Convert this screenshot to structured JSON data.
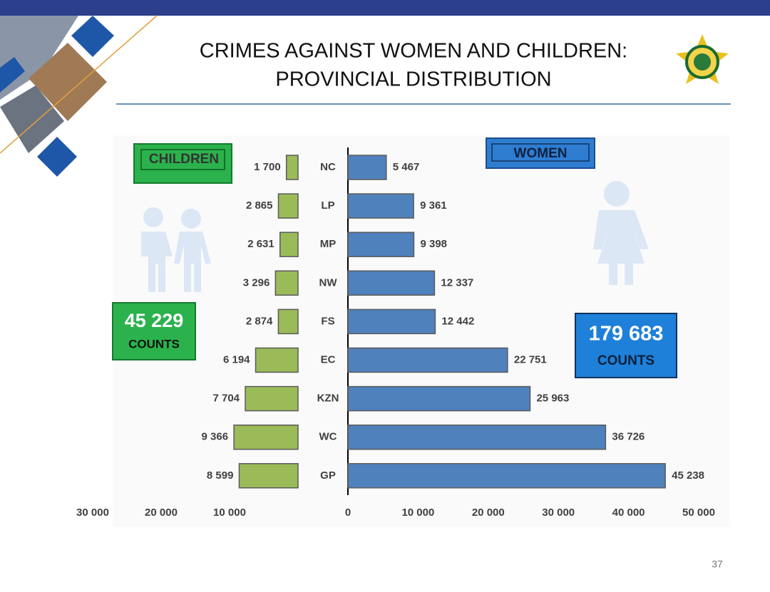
{
  "slide": {
    "title_lines": [
      "CRIMES AGAINST WOMEN AND CHILDREN:",
      "PROVINCIAL DISTRIBUTION"
    ],
    "page_number": "37"
  },
  "chart_data": [
    {
      "type": "bar",
      "orientation": "horizontal",
      "x_reversed": true,
      "label": "CHILDREN",
      "total": "45 229",
      "total_unit": "COUNTS",
      "color": "#9bbb59",
      "values": [
        1700,
        2865,
        2631,
        3296,
        2874,
        6194,
        7704,
        9366,
        8599
      ],
      "value_labels": [
        "1 700",
        "2 865",
        "2 631",
        "3 296",
        "2 874",
        "6 194",
        "7 704",
        "9 366",
        "8 599"
      ],
      "xlim": [
        0,
        30000
      ],
      "xticks": [
        {
          "value": 30000,
          "label": "30 000"
        },
        {
          "value": 20000,
          "label": "20 000"
        },
        {
          "value": 10000,
          "label": "10 000"
        }
      ]
    },
    {
      "type": "bar",
      "orientation": "horizontal",
      "x_reversed": false,
      "label": "WOMEN",
      "total": "179 683",
      "total_unit": "COUNTS",
      "color": "#4f81bd",
      "categories": [
        "NC",
        "LP",
        "MP",
        "NW",
        "FS",
        "EC",
        "KZN",
        "WC",
        "GP"
      ],
      "values": [
        5467,
        9361,
        9398,
        12337,
        12442,
        22751,
        25963,
        36726,
        45238
      ],
      "value_labels": [
        "5 467",
        "9 361",
        "9 398",
        "12 337",
        "12 442",
        "22 751",
        "25 963",
        "36 726",
        "45 238"
      ],
      "xlim": [
        0,
        50000
      ],
      "xticks": [
        0,
        {
          "value": 10000,
          "label": "10 000"
        },
        {
          "value": 20000,
          "label": "20 000"
        },
        {
          "value": 30000,
          "label": "30 000"
        },
        {
          "value": 40000,
          "label": "40 000"
        },
        {
          "value": 50000,
          "label": "50 000"
        }
      ]
    }
  ]
}
